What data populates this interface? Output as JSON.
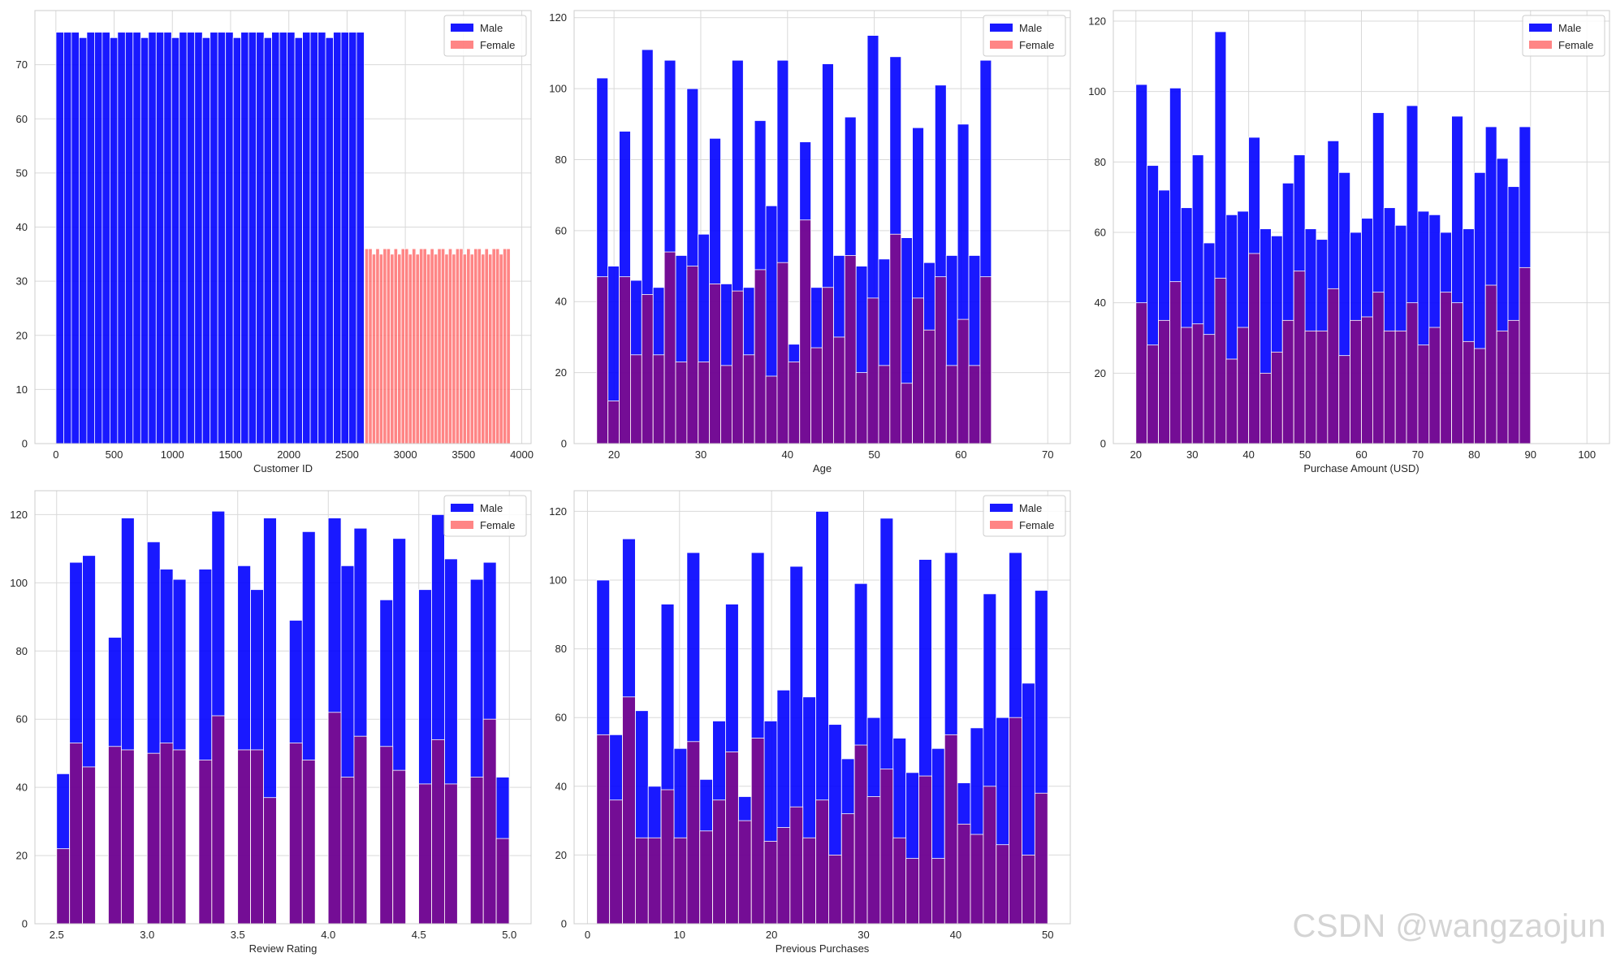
{
  "figure": {
    "watermark": "CSDN @wangzaojun",
    "colors": {
      "male": "#0000ff",
      "female": "#ff6666",
      "overlap": "#8b0a7a",
      "grid": "#d9d9d9",
      "spine": "#cccccc",
      "background": "#ffffff"
    }
  },
  "chart_data": [
    {
      "type": "histogram",
      "xlabel": "Customer ID",
      "xlim": [
        -180,
        4080
      ],
      "ylim": [
        0,
        80
      ],
      "xticks": [
        0,
        500,
        1000,
        1500,
        2000,
        2500,
        3000,
        3500,
        4000
      ],
      "yticks": [
        0,
        10,
        20,
        30,
        40,
        50,
        60,
        70
      ],
      "legend": {
        "position": "top-right",
        "entries": [
          "Male",
          "Female"
        ]
      },
      "series": [
        {
          "name": "Male",
          "bin_start": 1,
          "bin_width": 66.15,
          "values": [
            76,
            76,
            76,
            75,
            76,
            76,
            76,
            75,
            76,
            76,
            76,
            75,
            76,
            76,
            76,
            75,
            76,
            76,
            76,
            75,
            76,
            76,
            76,
            75,
            76,
            76,
            76,
            75,
            76,
            76,
            76,
            75,
            76,
            76,
            76,
            75,
            76,
            76,
            76,
            76
          ]
        },
        {
          "name": "Female",
          "bin_start": 2653,
          "bin_width": 31.2,
          "values": [
            36,
            36,
            35,
            36,
            35,
            36,
            36,
            35,
            36,
            35,
            36,
            36,
            35,
            36,
            35,
            36,
            36,
            35,
            36,
            35,
            36,
            36,
            35,
            36,
            35,
            36,
            36,
            35,
            36,
            35,
            36,
            36,
            35,
            36,
            35,
            36,
            36,
            35,
            36,
            36
          ]
        }
      ]
    },
    {
      "type": "histogram",
      "xlabel": "Age",
      "xlim": [
        15.4,
        72.6
      ],
      "ylim": [
        0,
        122
      ],
      "xticks": [
        20,
        30,
        40,
        50,
        60,
        70
      ],
      "yticks": [
        0,
        20,
        40,
        60,
        80,
        100,
        120
      ],
      "legend": {
        "position": "top-right",
        "entries": [
          "Male",
          "Female"
        ]
      },
      "series": [
        {
          "name": "Male",
          "bin_start": 18,
          "bin_width": 1.3,
          "values": [
            103,
            50,
            88,
            46,
            111,
            44,
            108,
            53,
            100,
            59,
            86,
            45,
            108,
            44,
            91,
            67,
            108,
            28,
            85,
            44,
            107,
            53,
            92,
            50,
            115,
            52,
            109,
            58,
            89,
            51,
            101,
            53,
            90,
            53,
            108
          ]
        },
        {
          "name": "Female",
          "bin_start": 18,
          "bin_width": 1.3,
          "values": [
            47,
            12,
            47,
            25,
            42,
            25,
            54,
            23,
            50,
            23,
            45,
            22,
            43,
            25,
            49,
            19,
            51,
            23,
            63,
            27,
            44,
            30,
            53,
            20,
            41,
            22,
            59,
            17,
            41,
            32,
            47,
            22,
            35,
            22,
            47
          ]
        }
      ]
    },
    {
      "type": "histogram",
      "xlabel": "Purchase Amount (USD)",
      "xlim": [
        16,
        104
      ],
      "ylim": [
        0,
        123
      ],
      "xticks": [
        20,
        30,
        40,
        50,
        60,
        70,
        80,
        90,
        100
      ],
      "yticks": [
        0,
        20,
        40,
        60,
        80,
        100,
        120
      ],
      "legend": {
        "position": "top-right",
        "entries": [
          "Male",
          "Female"
        ]
      },
      "series": [
        {
          "name": "Male",
          "bin_start": 20,
          "bin_width": 2,
          "values": [
            102,
            79,
            72,
            101,
            67,
            82,
            57,
            117,
            65,
            66,
            87,
            61,
            59,
            74,
            82,
            61,
            58,
            86,
            77,
            60,
            64,
            94,
            67,
            62,
            96,
            66,
            65,
            60,
            93,
            61,
            77,
            90,
            81,
            73,
            90
          ]
        },
        {
          "name": "Female",
          "bin_start": 20,
          "bin_width": 2,
          "values": [
            40,
            28,
            35,
            46,
            33,
            34,
            31,
            47,
            24,
            33,
            54,
            20,
            26,
            35,
            49,
            32,
            32,
            44,
            25,
            35,
            36,
            43,
            32,
            32,
            40,
            28,
            33,
            43,
            40,
            29,
            27,
            45,
            32,
            35,
            50
          ]
        }
      ]
    },
    {
      "type": "histogram",
      "xlabel": "Review Rating",
      "xlim": [
        2.38,
        5.12
      ],
      "ylim": [
        0,
        127
      ],
      "xticks": [
        2.5,
        3.0,
        3.5,
        4.0,
        4.5,
        5.0
      ],
      "xticklabels": [
        "2.5",
        "3.0",
        "3.5",
        "4.0",
        "4.5",
        "5.0"
      ],
      "yticks": [
        0,
        20,
        40,
        60,
        80,
        100,
        120
      ],
      "legend": {
        "position": "top-right",
        "entries": [
          "Male",
          "Female"
        ]
      },
      "series": [
        {
          "name": "Male",
          "bin_start": 2.5,
          "bin_width": 0.0714,
          "values": [
            44,
            106,
            108,
            0,
            84,
            119,
            0,
            112,
            104,
            101,
            0,
            104,
            121,
            0,
            105,
            98,
            119,
            0,
            89,
            115,
            0,
            119,
            105,
            116,
            0,
            95,
            113,
            0,
            98,
            120,
            107,
            0,
            101,
            106,
            43
          ]
        },
        {
          "name": "Female",
          "bin_start": 2.5,
          "bin_width": 0.0714,
          "values": [
            22,
            53,
            46,
            0,
            52,
            51,
            0,
            50,
            53,
            51,
            0,
            48,
            61,
            0,
            51,
            51,
            37,
            0,
            53,
            48,
            0,
            62,
            43,
            55,
            0,
            52,
            45,
            0,
            41,
            54,
            41,
            0,
            43,
            60,
            25
          ]
        }
      ]
    },
    {
      "type": "histogram",
      "xlabel": "Previous Purchases",
      "xlim": [
        -1.45,
        52.45
      ],
      "ylim": [
        0,
        126
      ],
      "xticks": [
        0,
        10,
        20,
        30,
        40,
        50
      ],
      "yticks": [
        0,
        20,
        40,
        60,
        80,
        100,
        120
      ],
      "legend": {
        "position": "top-right",
        "entries": [
          "Male",
          "Female"
        ]
      },
      "series": [
        {
          "name": "Male",
          "bin_start": 1,
          "bin_width": 1.4,
          "values": [
            100,
            55,
            112,
            62,
            40,
            93,
            51,
            108,
            42,
            59,
            93,
            37,
            108,
            59,
            68,
            104,
            66,
            120,
            58,
            48,
            99,
            60,
            118,
            54,
            44,
            106,
            51,
            108,
            41,
            57,
            96,
            60,
            108,
            70,
            97
          ]
        },
        {
          "name": "Female",
          "bin_start": 1,
          "bin_width": 1.4,
          "values": [
            55,
            36,
            66,
            25,
            25,
            39,
            25,
            53,
            27,
            36,
            50,
            30,
            54,
            24,
            28,
            34,
            25,
            36,
            20,
            32,
            52,
            37,
            45,
            25,
            19,
            43,
            19,
            55,
            29,
            26,
            40,
            23,
            60,
            20,
            38
          ]
        }
      ]
    }
  ]
}
